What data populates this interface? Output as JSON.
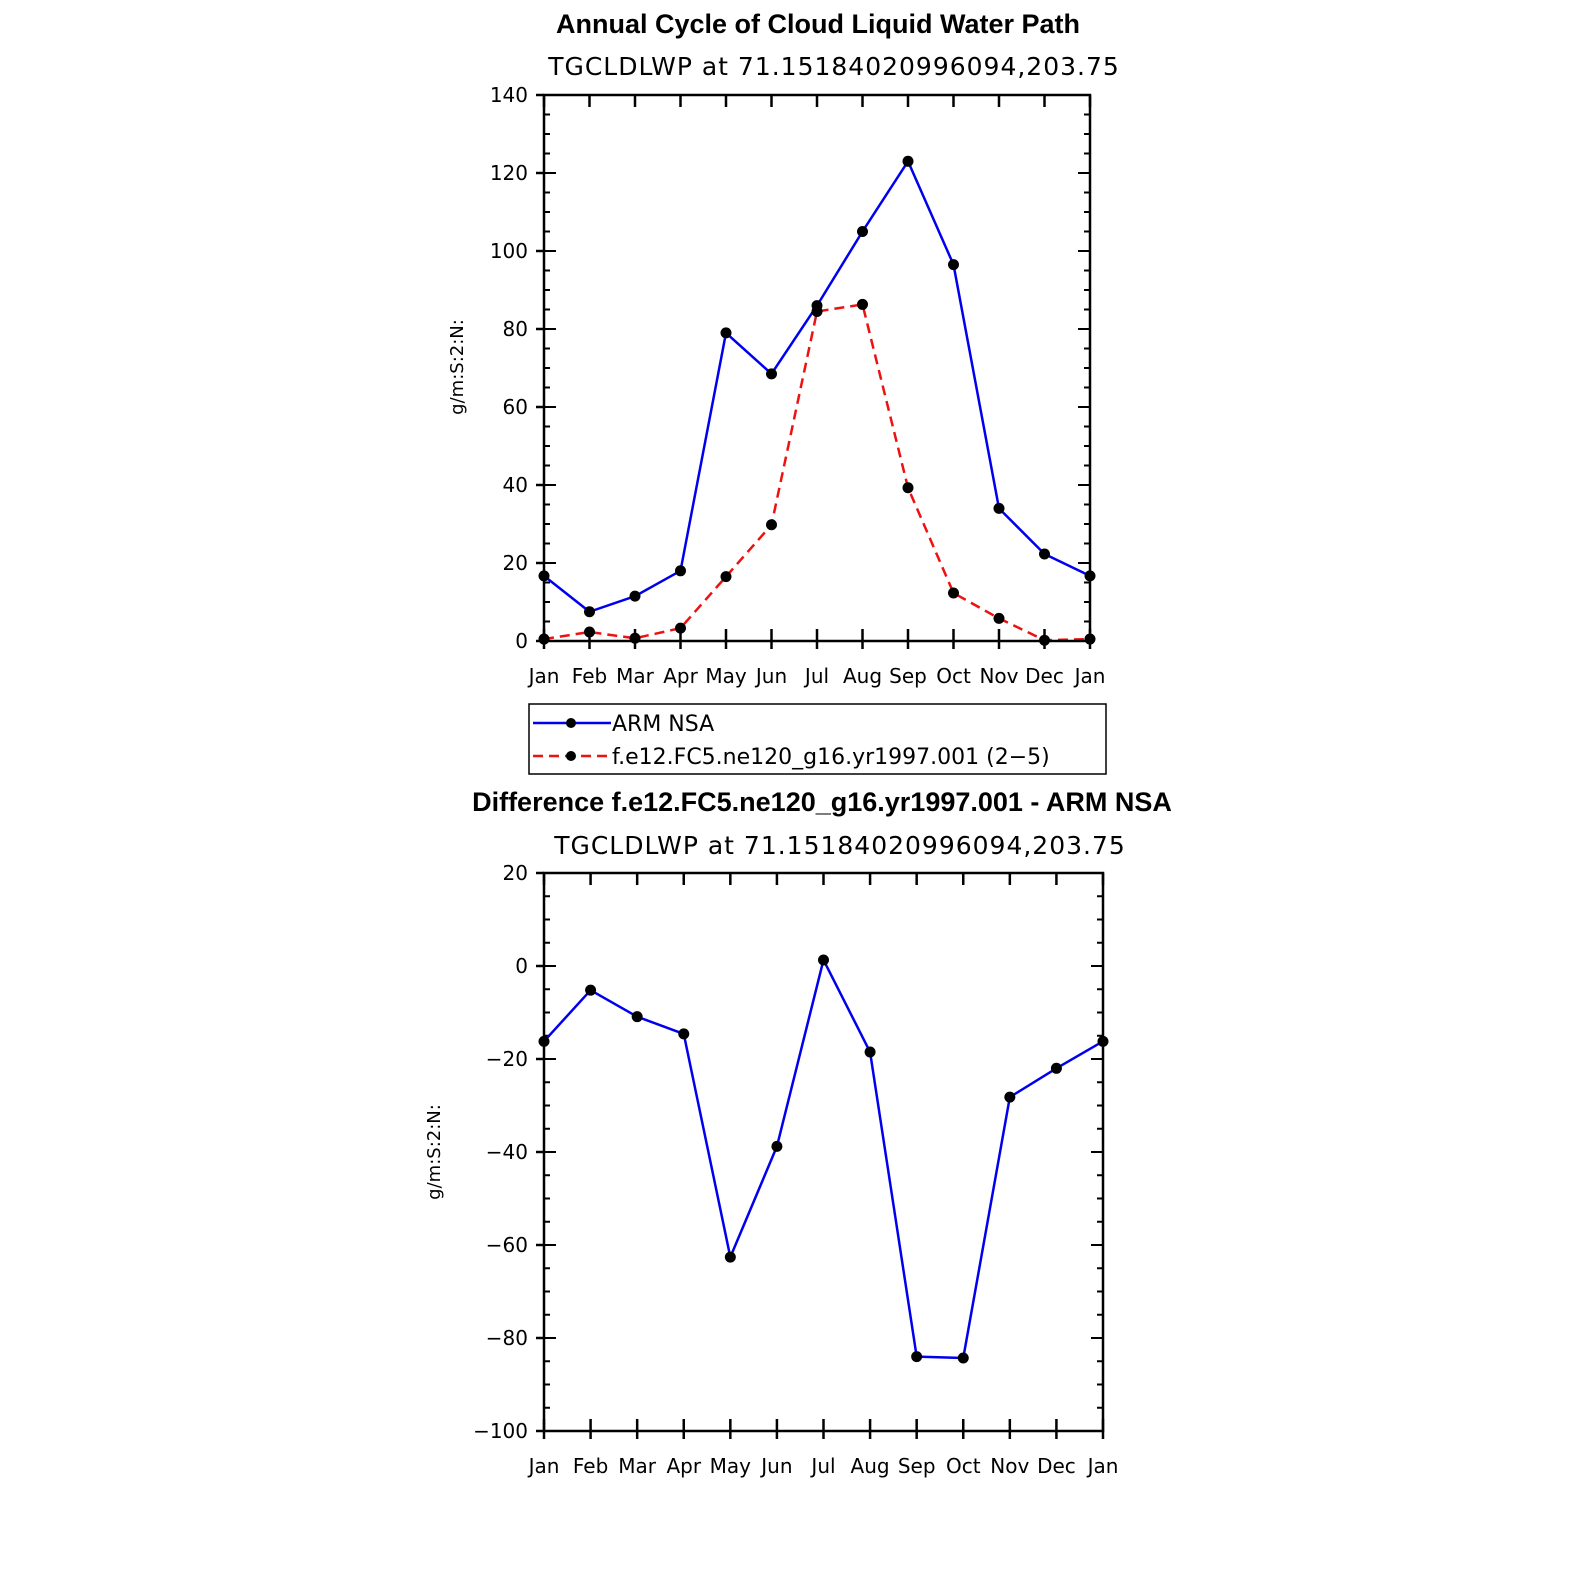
{
  "colors": {
    "series_blue": "#0000ee",
    "series_red": "#ee1111",
    "marker": "#000000",
    "axis": "#000000"
  },
  "chart_data": [
    {
      "type": "line",
      "title": "Annual Cycle of Cloud Liquid Water Path",
      "subtitle": "TGCLDLWP  at  71.15184020996094,203.75",
      "xlabel": "",
      "ylabel": "g/m:S:2:N:",
      "categories": [
        "Jan",
        "Feb",
        "Mar",
        "Apr",
        "May",
        "Jun",
        "Jul",
        "Aug",
        "Sep",
        "Oct",
        "Nov",
        "Dec",
        "Jan"
      ],
      "ylim": [
        0,
        140
      ],
      "yticks": [
        "0",
        "20",
        "40",
        "60",
        "80",
        "100",
        "120",
        "140"
      ],
      "grid": false,
      "legend_position": "bottom",
      "series": [
        {
          "name": "ARM  NSA",
          "color": "#0000ee",
          "dash": "solid",
          "values": [
            16.7,
            7.5,
            11.5,
            18,
            79,
            68.5,
            86,
            105,
            123,
            96.5,
            34,
            22.3,
            16.7
          ]
        },
        {
          "name": "f.e12.FC5.ne120_g16.yr1997.001  (2−5)",
          "color": "#ee1111",
          "dash": "dashed",
          "values": [
            0.5,
            2.3,
            0.7,
            3.3,
            16.5,
            29.8,
            84.5,
            86.3,
            39.3,
            12.3,
            5.8,
            0.2,
            0.5
          ]
        }
      ]
    },
    {
      "type": "line",
      "title": "Difference f.e12.FC5.ne120_g16.yr1997.001 - ARM NSA",
      "subtitle": "TGCLDLWP  at  71.15184020996094,203.75",
      "xlabel": "",
      "ylabel": "g/m:S:2:N:",
      "categories": [
        "Jan",
        "Feb",
        "Mar",
        "Apr",
        "May",
        "Jun",
        "Jul",
        "Aug",
        "Sep",
        "Oct",
        "Nov",
        "Dec",
        "Jan"
      ],
      "ylim": [
        -100,
        20
      ],
      "yticks": [
        "−100",
        "−80",
        "−60",
        "−40",
        "−20",
        "0",
        "20"
      ],
      "grid": false,
      "series": [
        {
          "color": "#0000ee",
          "dash": "solid",
          "values": [
            -16.2,
            -5.2,
            -10.9,
            -14.6,
            -62.6,
            -38.8,
            1.3,
            -18.5,
            -84,
            -84.3,
            -28.2,
            -22,
            -16.2
          ]
        }
      ]
    }
  ]
}
